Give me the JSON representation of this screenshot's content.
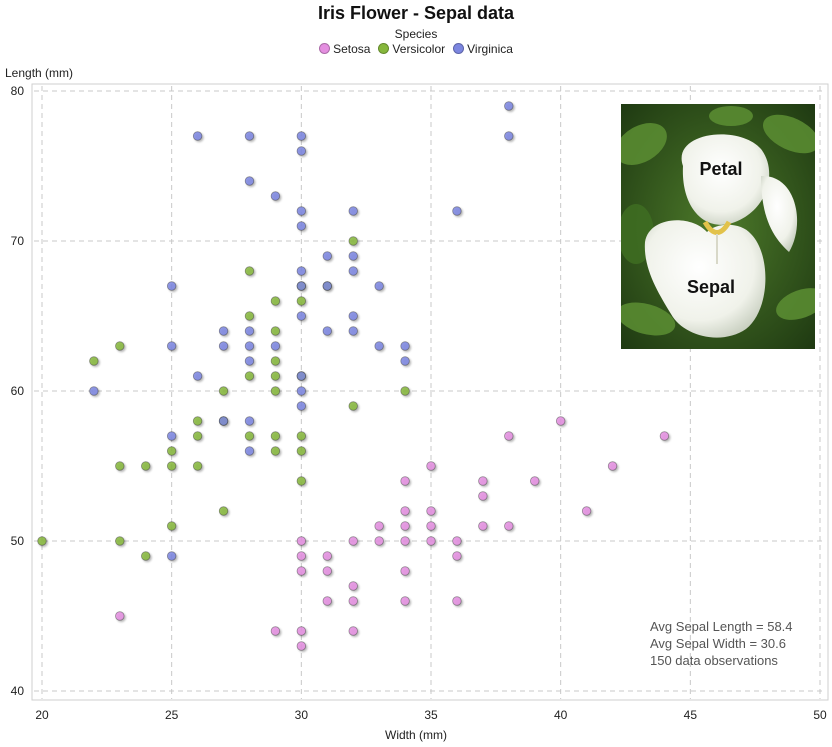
{
  "chart_data": {
    "type": "scatter",
    "title": "Iris Flower - Sepal data",
    "xlabel": "Width (mm)",
    "ylabel": "Length (mm)",
    "xlim": [
      20,
      50
    ],
    "ylim": [
      40,
      80
    ],
    "xticks": [
      "20",
      "25",
      "30",
      "35",
      "40",
      "45",
      "50"
    ],
    "yticks": [
      "40",
      "50",
      "60",
      "70",
      "80"
    ],
    "grid": true,
    "legend": {
      "title": "Species",
      "position": "top-center"
    },
    "series": [
      {
        "name": "Setosa",
        "color": "#e48fe0",
        "points": [
          [
            23,
            45
          ],
          [
            29,
            44
          ],
          [
            30,
            44
          ],
          [
            30,
            43
          ],
          [
            30,
            48
          ],
          [
            30,
            49
          ],
          [
            30,
            50
          ],
          [
            31,
            49
          ],
          [
            31,
            48
          ],
          [
            31,
            46
          ],
          [
            32,
            47
          ],
          [
            32,
            46
          ],
          [
            32,
            44
          ],
          [
            32,
            50
          ],
          [
            33,
            50
          ],
          [
            33,
            51
          ],
          [
            34,
            54
          ],
          [
            34,
            52
          ],
          [
            34,
            51
          ],
          [
            34,
            50
          ],
          [
            34,
            48
          ],
          [
            34,
            46
          ],
          [
            35,
            55
          ],
          [
            35,
            52
          ],
          [
            35,
            51
          ],
          [
            35,
            50
          ],
          [
            36,
            50
          ],
          [
            36,
            49
          ],
          [
            36,
            46
          ],
          [
            37,
            54
          ],
          [
            37,
            53
          ],
          [
            37,
            51
          ],
          [
            38,
            57
          ],
          [
            38,
            51
          ],
          [
            39,
            54
          ],
          [
            40,
            58
          ],
          [
            41,
            52
          ],
          [
            42,
            55
          ],
          [
            44,
            57
          ]
        ]
      },
      {
        "name": "Versicolor",
        "color": "#86b73c",
        "points": [
          [
            20,
            50
          ],
          [
            22,
            62
          ],
          [
            23,
            63
          ],
          [
            23,
            55
          ],
          [
            23,
            50
          ],
          [
            24,
            55
          ],
          [
            24,
            49
          ],
          [
            25,
            56
          ],
          [
            25,
            55
          ],
          [
            25,
            51
          ],
          [
            26,
            58
          ],
          [
            26,
            57
          ],
          [
            26,
            55
          ],
          [
            27,
            60
          ],
          [
            27,
            58
          ],
          [
            27,
            52
          ],
          [
            28,
            68
          ],
          [
            28,
            65
          ],
          [
            28,
            61
          ],
          [
            28,
            57
          ],
          [
            29,
            66
          ],
          [
            29,
            64
          ],
          [
            29,
            62
          ],
          [
            29,
            61
          ],
          [
            29,
            60
          ],
          [
            29,
            57
          ],
          [
            29,
            56
          ],
          [
            30,
            67
          ],
          [
            30,
            66
          ],
          [
            30,
            61
          ],
          [
            30,
            57
          ],
          [
            30,
            56
          ],
          [
            30,
            54
          ],
          [
            31,
            67
          ],
          [
            32,
            70
          ],
          [
            32,
            59
          ],
          [
            34,
            60
          ]
        ]
      },
      {
        "name": "Virginica",
        "color": "#7c86e0",
        "points": [
          [
            22,
            60
          ],
          [
            25,
            67
          ],
          [
            25,
            63
          ],
          [
            25,
            57
          ],
          [
            25,
            49
          ],
          [
            26,
            77
          ],
          [
            26,
            61
          ],
          [
            27,
            64
          ],
          [
            27,
            63
          ],
          [
            27,
            58
          ],
          [
            28,
            77
          ],
          [
            28,
            74
          ],
          [
            28,
            64
          ],
          [
            28,
            63
          ],
          [
            28,
            62
          ],
          [
            28,
            58
          ],
          [
            28,
            56
          ],
          [
            29,
            73
          ],
          [
            29,
            63
          ],
          [
            30,
            77
          ],
          [
            30,
            76
          ],
          [
            30,
            72
          ],
          [
            30,
            71
          ],
          [
            30,
            68
          ],
          [
            30,
            67
          ],
          [
            30,
            65
          ],
          [
            30,
            61
          ],
          [
            30,
            60
          ],
          [
            30,
            59
          ],
          [
            31,
            69
          ],
          [
            31,
            67
          ],
          [
            31,
            64
          ],
          [
            32,
            72
          ],
          [
            32,
            69
          ],
          [
            32,
            68
          ],
          [
            32,
            65
          ],
          [
            32,
            64
          ],
          [
            33,
            67
          ],
          [
            33,
            63
          ],
          [
            34,
            63
          ],
          [
            34,
            62
          ],
          [
            36,
            72
          ],
          [
            38,
            79
          ],
          [
            38,
            77
          ]
        ]
      }
    ]
  },
  "annotations": {
    "stats": [
      "Avg Sepal Length = 58.4",
      "Avg Sepal Width = 30.6",
      "150 data observations"
    ],
    "inset_photo": {
      "labels": [
        "Petal",
        "Sepal"
      ]
    }
  }
}
